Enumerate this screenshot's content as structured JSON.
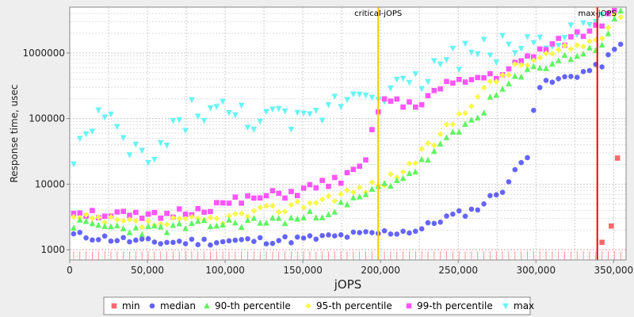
{
  "chart_data": {
    "type": "scatter",
    "xlabel": "jOPS",
    "ylabel": "Response time, usec",
    "xlim": [
      0,
      358000
    ],
    "ylim": [
      700,
      5000000
    ],
    "y_scale": "log",
    "grid": true,
    "legend_position": "bottom",
    "x_ticks": [
      "0",
      "50,000",
      "100,000",
      "150,000",
      "200,000",
      "250,000",
      "300,000",
      "350,000"
    ],
    "y_ticks": [
      "1000",
      "10000",
      "100000",
      "1000000",
      "10000000"
    ],
    "markers": [
      {
        "name": "critical-jOPS",
        "x": 198500,
        "color": "#ffc800"
      },
      {
        "name": "max-jOPS",
        "x": 339500,
        "color": "#ff0000"
      }
    ],
    "series": [
      {
        "name": "min",
        "color": "#f8696b",
        "shape": "square",
        "x": [
          342500,
          348500,
          352500
        ],
        "y": [
          1300,
          2300,
          25000
        ]
      },
      {
        "name": "median",
        "color": "#6464ff",
        "shape": "circle"
      },
      {
        "name": "90-th percentile",
        "color": "#5ff55f",
        "shape": "triangle-up"
      },
      {
        "name": "95-th percentile",
        "color": "#f8f84a",
        "shape": "diamond"
      },
      {
        "name": "99-th percentile",
        "color": "#ff55ff",
        "shape": "square"
      },
      {
        "name": "max",
        "color": "#66f4f4",
        "shape": "triangle-down"
      }
    ]
  }
}
